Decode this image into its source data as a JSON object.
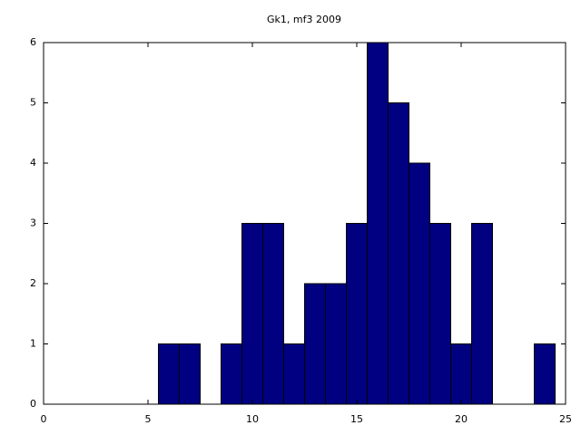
{
  "chart_data": {
    "type": "histogram",
    "title": "Gk1, mf3 2009",
    "bins": [
      5.5,
      6.5,
      7.5,
      8.5,
      9.5,
      10.5,
      11.5,
      12.5,
      13.5,
      14.5,
      15.5,
      16.5,
      17.5,
      18.5,
      19.5,
      20.5,
      21.5,
      22.5,
      23.5,
      24.5
    ],
    "values": [
      1,
      1,
      0,
      1,
      3,
      3,
      1,
      2,
      2,
      3,
      6,
      5,
      4,
      3,
      1,
      3,
      0,
      0,
      1
    ],
    "color": "#000080",
    "xlim": [
      0,
      25
    ],
    "xticks": [
      0,
      5,
      10,
      15,
      20,
      25
    ],
    "ylim": [
      0,
      6
    ],
    "yticks": [
      0,
      1,
      2,
      3,
      4,
      5,
      6
    ],
    "grid": false
  }
}
